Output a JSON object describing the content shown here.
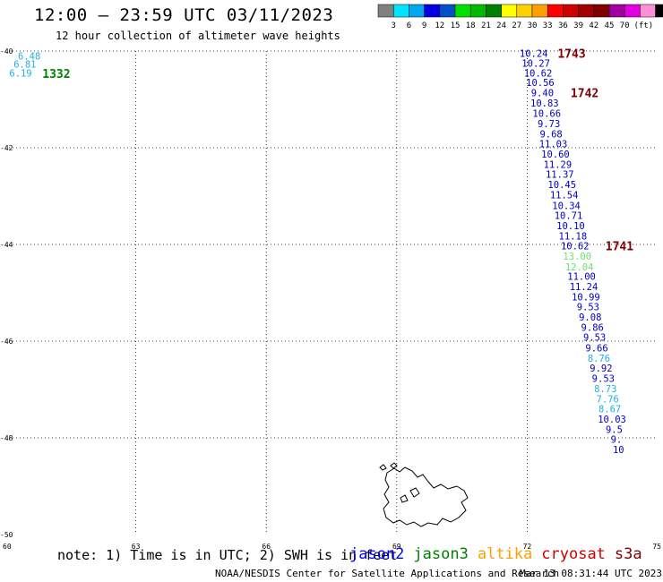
{
  "title": "12:00 — 23:59 UTC 03/11/2023",
  "subtitle": "12 hour collection of altimeter wave heights",
  "colorbar": {
    "colors": [
      "#808080",
      "#00e5ff",
      "#00a8f0",
      "#0000e0",
      "#0050c8",
      "#00e000",
      "#00b800",
      "#008000",
      "#ffff00",
      "#ffd000",
      "#ffa000",
      "#ff0000",
      "#d00000",
      "#a00000",
      "#800000",
      "#a000a0",
      "#e000e0",
      "#ff90d8",
      "#000000"
    ],
    "labels": [
      "3",
      "6",
      "9",
      "12",
      "15",
      "18",
      "21",
      "24",
      "27",
      "30",
      "33",
      "36",
      "39",
      "42",
      "45",
      "70"
    ],
    "unit": "(ft)"
  },
  "chart_data": {
    "type": "scatter",
    "title": "12:00 — 23:59 UTC 03/11/2023",
    "subtitle": "12 hour collection of altimeter wave heights",
    "xlim": [
      60,
      75
    ],
    "ylim": [
      -50,
      -40
    ],
    "x_ticks": [
      "60",
      "63",
      "66",
      "69",
      "72",
      "75"
    ],
    "y_ticks": [
      "-40",
      "-42",
      "-44",
      "-46",
      "-48",
      "-50"
    ],
    "grid": true,
    "points": [
      {
        "lon": 60.55,
        "lat": -40.1,
        "value": "6.48",
        "color": "#20b0e0"
      },
      {
        "lon": 60.45,
        "lat": -40.27,
        "value": "6.81",
        "color": "#20b0e0"
      },
      {
        "lon": 60.35,
        "lat": -40.45,
        "value": "6.19",
        "color": "#20b0e0"
      },
      {
        "lon": 72.15,
        "lat": -40.05,
        "value": "10.24",
        "color": "#0000c0"
      },
      {
        "lon": 72.2,
        "lat": -40.25,
        "value": "10.27",
        "color": "#0000c0"
      },
      {
        "lon": 72.25,
        "lat": -40.45,
        "value": "10.62",
        "color": "#0000c0"
      },
      {
        "lon": 72.3,
        "lat": -40.65,
        "value": "10.56",
        "color": "#0000c0"
      },
      {
        "lon": 72.35,
        "lat": -40.86,
        "value": "9.40",
        "color": "#0000c0"
      },
      {
        "lon": 72.4,
        "lat": -41.07,
        "value": "10.83",
        "color": "#0000c0"
      },
      {
        "lon": 72.45,
        "lat": -41.29,
        "value": "10.66",
        "color": "#0000c0"
      },
      {
        "lon": 72.5,
        "lat": -41.5,
        "value": "9.73",
        "color": "#0000c0"
      },
      {
        "lon": 72.55,
        "lat": -41.71,
        "value": "9.68",
        "color": "#0000c0"
      },
      {
        "lon": 72.6,
        "lat": -41.92,
        "value": "11.03",
        "color": "#0000c0"
      },
      {
        "lon": 72.65,
        "lat": -42.13,
        "value": "10.60",
        "color": "#0000c0"
      },
      {
        "lon": 72.7,
        "lat": -42.34,
        "value": "11.29",
        "color": "#0000c0"
      },
      {
        "lon": 72.75,
        "lat": -42.55,
        "value": "11.37",
        "color": "#0000c0"
      },
      {
        "lon": 72.8,
        "lat": -42.76,
        "value": "10.45",
        "color": "#0000c0"
      },
      {
        "lon": 72.85,
        "lat": -42.97,
        "value": "11.54",
        "color": "#0000c0"
      },
      {
        "lon": 72.9,
        "lat": -43.19,
        "value": "10.34",
        "color": "#0000c0"
      },
      {
        "lon": 72.95,
        "lat": -43.4,
        "value": "10.71",
        "color": "#0000c0"
      },
      {
        "lon": 73.0,
        "lat": -43.61,
        "value": "10.10",
        "color": "#0000c0"
      },
      {
        "lon": 73.05,
        "lat": -43.82,
        "value": "11.18",
        "color": "#0000c0"
      },
      {
        "lon": 73.1,
        "lat": -44.03,
        "value": "10.62",
        "color": "#0000c0"
      },
      {
        "lon": 73.15,
        "lat": -44.24,
        "value": "13.00",
        "color": "#70e070"
      },
      {
        "lon": 73.2,
        "lat": -44.46,
        "value": "12.04",
        "color": "#70e070"
      },
      {
        "lon": 73.25,
        "lat": -44.66,
        "value": "11.00",
        "color": "#0000c0"
      },
      {
        "lon": 73.3,
        "lat": -44.87,
        "value": "11.24",
        "color": "#0000c0"
      },
      {
        "lon": 73.35,
        "lat": -45.08,
        "value": "10.99",
        "color": "#0000c0"
      },
      {
        "lon": 73.4,
        "lat": -45.29,
        "value": "9.53",
        "color": "#0000c0"
      },
      {
        "lon": 73.45,
        "lat": -45.5,
        "value": "9.08",
        "color": "#0000c0"
      },
      {
        "lon": 73.5,
        "lat": -45.71,
        "value": "9.86",
        "color": "#0000c0"
      },
      {
        "lon": 73.55,
        "lat": -45.92,
        "value": "9.53",
        "color": "#0000c0"
      },
      {
        "lon": 73.6,
        "lat": -46.14,
        "value": "9.66",
        "color": "#0000c0"
      },
      {
        "lon": 73.65,
        "lat": -46.35,
        "value": "8.76",
        "color": "#20b0e0"
      },
      {
        "lon": 73.7,
        "lat": -46.56,
        "value": "9.92",
        "color": "#0000c0"
      },
      {
        "lon": 73.75,
        "lat": -46.77,
        "value": "9.53",
        "color": "#0000c0"
      },
      {
        "lon": 73.8,
        "lat": -46.98,
        "value": "8.73",
        "color": "#20b0e0"
      },
      {
        "lon": 73.85,
        "lat": -47.19,
        "value": "7.76",
        "color": "#20b0e0"
      },
      {
        "lon": 73.9,
        "lat": -47.4,
        "value": "8.67",
        "color": "#20b0e0"
      },
      {
        "lon": 73.95,
        "lat": -47.61,
        "value": "10.03",
        "color": "#0000c0"
      },
      {
        "lon": 74.0,
        "lat": -47.82,
        "value": "9.5",
        "color": "#0000c0"
      },
      {
        "lon": 74.05,
        "lat": -48.03,
        "value": "9.",
        "color": "#0000c0"
      },
      {
        "lon": 74.1,
        "lat": -48.24,
        "value": "10",
        "color": "#0000c0"
      }
    ],
    "time_labels": [
      {
        "lon": 60.85,
        "lat": -40.46,
        "text": "1332",
        "color": "#008000"
      },
      {
        "lon": 72.7,
        "lat": -40.05,
        "text": "1743",
        "color": "#800000"
      },
      {
        "lon": 73.0,
        "lat": -40.86,
        "text": "1742",
        "color": "#800000"
      },
      {
        "lon": 73.8,
        "lat": -44.03,
        "text": "1741",
        "color": "#800000"
      }
    ]
  },
  "note": "note: 1) Time is in UTC; 2) SWH is in feet",
  "satellites": [
    {
      "name": "jason2",
      "color": "#0000ff"
    },
    {
      "name": "jason3",
      "color": "#008000"
    },
    {
      "name": "altika",
      "color": "#ffa000"
    },
    {
      "name": "cryosat",
      "color": "#d00000"
    },
    {
      "name": "s3a",
      "color": "#800000"
    }
  ],
  "credit": "NOAA/NESDIS Center for Satellite Applications and Research",
  "timestamp": "Mar 13 08:31:44 UTC 2023"
}
